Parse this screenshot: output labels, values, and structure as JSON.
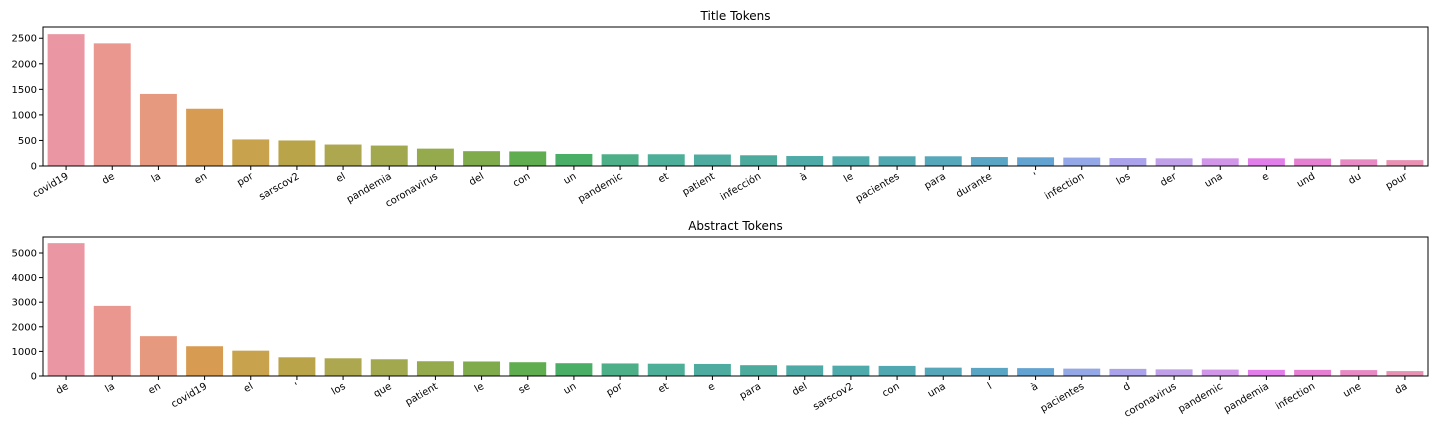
{
  "chart_data": [
    {
      "type": "bar",
      "title": "Title Tokens",
      "xlabel": "",
      "ylabel": "",
      "ylim": [
        0,
        2720
      ],
      "yticks": [
        0,
        500,
        1000,
        1500,
        2000,
        2500
      ],
      "grid": false,
      "categories": [
        "covid19",
        "de",
        "la",
        "en",
        "por",
        "sarscov2",
        "el",
        "pandemia",
        "coronavirus",
        "del",
        "con",
        "un",
        "pandemic",
        "et",
        "patient",
        "infección",
        "à",
        "le",
        "pacientes",
        "para",
        "durante",
        "'",
        "infection",
        "los",
        "der",
        "una",
        "e",
        "und",
        "du",
        "pour"
      ],
      "values": [
        2580,
        2400,
        1410,
        1120,
        520,
        500,
        420,
        400,
        340,
        290,
        285,
        235,
        230,
        230,
        225,
        210,
        195,
        190,
        190,
        190,
        175,
        170,
        165,
        155,
        150,
        150,
        150,
        145,
        130,
        115
      ],
      "colors": [
        "#ea96a3",
        "#e9978f",
        "#e6997e",
        "#d89b52",
        "#c8a24d",
        "#b9a44a",
        "#ada84f",
        "#a2a84e",
        "#94aa4d",
        "#80ab4c",
        "#5fad4e",
        "#4aae66",
        "#4daf88",
        "#4daf98",
        "#4dac9f",
        "#4dab9e",
        "#4eaaa6",
        "#4faaab",
        "#51a8b1",
        "#56a7ba",
        "#5aa5c3",
        "#62a3d1",
        "#94a8e8",
        "#aaa2ea",
        "#bfa0e9",
        "#d296e9",
        "#e17eea",
        "#e67fd2",
        "#e889c4",
        "#e891b2"
      ]
    },
    {
      "type": "bar",
      "title": "Abstract Tokens",
      "xlabel": "",
      "ylabel": "",
      "ylim": [
        0,
        5650
      ],
      "yticks": [
        0,
        1000,
        2000,
        3000,
        4000,
        5000
      ],
      "grid": false,
      "categories": [
        "de",
        "la",
        "en",
        "covid19",
        "el",
        "'",
        "los",
        "que",
        "patient",
        "le",
        "se",
        "un",
        "por",
        "et",
        "e",
        "para",
        "del",
        "sarscov2",
        "con",
        "una",
        "l",
        "à",
        "pacientes",
        "d",
        "coronavirus",
        "pandemic",
        "pandemia",
        "infection",
        "une",
        "da"
      ],
      "values": [
        5400,
        2850,
        1620,
        1210,
        1030,
        760,
        720,
        680,
        600,
        590,
        560,
        520,
        510,
        500,
        490,
        440,
        430,
        420,
        410,
        340,
        330,
        320,
        300,
        290,
        270,
        260,
        250,
        250,
        240,
        200
      ],
      "colors": [
        "#ea96a3",
        "#e9978f",
        "#e6997e",
        "#d89b52",
        "#c8a24d",
        "#b9a44a",
        "#ada84f",
        "#a2a84e",
        "#94aa4d",
        "#80ab4c",
        "#5fad4e",
        "#4aae66",
        "#4daf88",
        "#4daf98",
        "#4dac9f",
        "#4dab9e",
        "#4eaaa6",
        "#4faaab",
        "#51a8b1",
        "#56a7ba",
        "#5aa5c3",
        "#62a3d1",
        "#94a8e8",
        "#aaa2ea",
        "#bfa0e9",
        "#d296e9",
        "#e17eea",
        "#e67fd2",
        "#e889c4",
        "#e891b2"
      ]
    }
  ]
}
